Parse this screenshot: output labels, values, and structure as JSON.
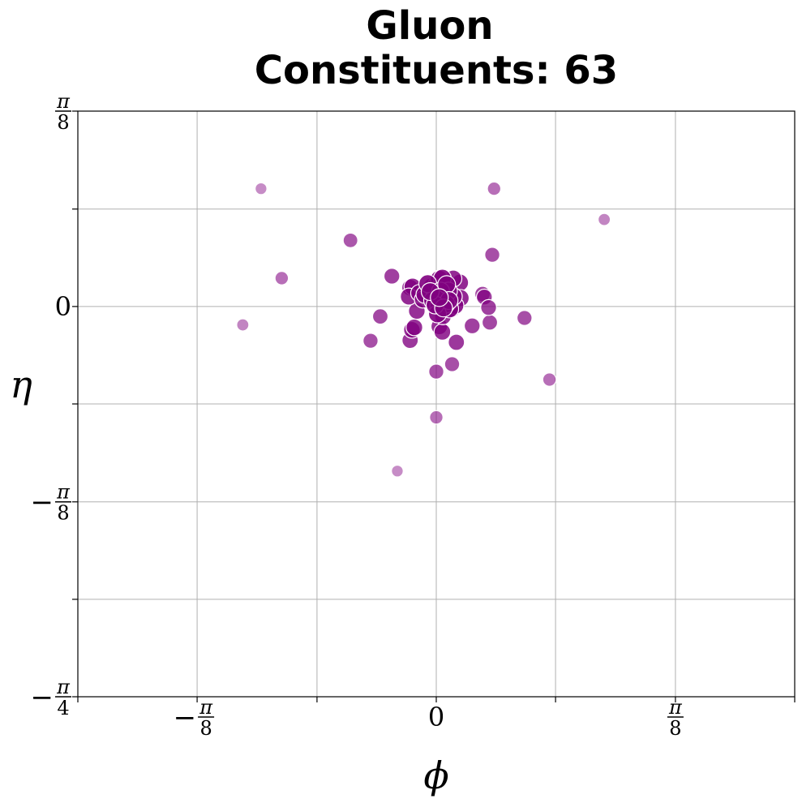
{
  "chart_data": {
    "type": "scatter",
    "title": "Gluon",
    "subtitle": "Constituents: 63",
    "xlabel": "ϕ",
    "ylabel": "η",
    "xlim": [
      -0.589,
      0.589
    ],
    "ylim": [
      -0.785,
      0.393
    ],
    "grid": true,
    "x_ticks": [
      {
        "value": -0.393,
        "label": "−π/8",
        "num": "π",
        "den": "8",
        "neg": true
      },
      {
        "value": 0,
        "label": "0"
      },
      {
        "value": 0.393,
        "label": "π/8",
        "num": "π",
        "den": "8",
        "neg": false
      }
    ],
    "y_ticks": [
      {
        "value": 0.393,
        "label": "π/8",
        "num": "π",
        "den": "8",
        "neg": false
      },
      {
        "value": 0,
        "label": "0"
      },
      {
        "value": -0.393,
        "label": "−π/8",
        "num": "π",
        "den": "8",
        "neg": true
      },
      {
        "value": -0.785,
        "label": "−π/4",
        "num": "π",
        "den": "4",
        "neg": true
      }
    ],
    "color": "#800080",
    "points": [
      {
        "x": -0.288,
        "y": 0.237,
        "s": 0.25
      },
      {
        "x": 0.095,
        "y": 0.237,
        "s": 0.45
      },
      {
        "x": 0.276,
        "y": 0.175,
        "s": 0.3
      },
      {
        "x": -0.141,
        "y": 0.133,
        "s": 0.6
      },
      {
        "x": 0.092,
        "y": 0.104,
        "s": 0.65
      },
      {
        "x": -0.254,
        "y": 0.057,
        "s": 0.45
      },
      {
        "x": -0.318,
        "y": -0.037,
        "s": 0.3
      },
      {
        "x": -0.073,
        "y": 0.061,
        "s": 0.75
      },
      {
        "x": -0.039,
        "y": 0.04,
        "s": 0.9
      },
      {
        "x": -0.045,
        "y": 0.02,
        "s": 0.9
      },
      {
        "x": -0.028,
        "y": 0.027,
        "s": 0.9
      },
      {
        "x": -0.022,
        "y": 0.014,
        "s": 0.9
      },
      {
        "x": -0.007,
        "y": 0.04,
        "s": 1.0
      },
      {
        "x": 0.001,
        "y": 0.044,
        "s": 1.0
      },
      {
        "x": 0.005,
        "y": 0.055,
        "s": 1.0
      },
      {
        "x": 0.01,
        "y": 0.057,
        "s": 1.0
      },
      {
        "x": 0.0,
        "y": 0.02,
        "s": 1.0
      },
      {
        "x": -0.006,
        "y": 0.012,
        "s": 1.0
      },
      {
        "x": 0.008,
        "y": 0.008,
        "s": 1.0
      },
      {
        "x": 0.004,
        "y": 0.001,
        "s": 1.0
      },
      {
        "x": 0.014,
        "y": 0.014,
        "s": 1.0
      },
      {
        "x": 0.011,
        "y": 0.022,
        "s": 1.0
      },
      {
        "x": 0.028,
        "y": 0.02,
        "s": 1.0
      },
      {
        "x": 0.02,
        "y": 0.031,
        "s": 1.0
      },
      {
        "x": 0.022,
        "y": -0.005,
        "s": 1.0
      },
      {
        "x": 0.039,
        "y": 0.048,
        "s": 0.9
      },
      {
        "x": 0.04,
        "y": 0.017,
        "s": 0.9
      },
      {
        "x": 0.028,
        "y": 0.056,
        "s": 0.9
      },
      {
        "x": -0.043,
        "y": 0.038,
        "s": 0.85
      },
      {
        "x": -0.032,
        "y": -0.009,
        "s": 0.85
      },
      {
        "x": -0.04,
        "y": -0.047,
        "s": 0.85
      },
      {
        "x": -0.036,
        "y": -0.042,
        "s": 0.85
      },
      {
        "x": -0.043,
        "y": -0.068,
        "s": 0.8
      },
      {
        "x": 0.005,
        "y": -0.04,
        "s": 0.85
      },
      {
        "x": 0.01,
        "y": -0.051,
        "s": 0.85
      },
      {
        "x": 0.011,
        "y": -0.02,
        "s": 0.85
      },
      {
        "x": 0.026,
        "y": -0.005,
        "s": 0.85
      },
      {
        "x": 0.033,
        "y": -0.072,
        "s": 0.8
      },
      {
        "x": 0.059,
        "y": -0.039,
        "s": 0.75
      },
      {
        "x": 0.076,
        "y": 0.025,
        "s": 0.7
      },
      {
        "x": 0.079,
        "y": 0.019,
        "s": 0.75
      },
      {
        "x": 0.086,
        "y": -0.002,
        "s": 0.75
      },
      {
        "x": 0.088,
        "y": -0.032,
        "s": 0.7
      },
      {
        "x": 0.145,
        "y": -0.023,
        "s": 0.65
      },
      {
        "x": -0.092,
        "y": -0.02,
        "s": 0.7
      },
      {
        "x": -0.108,
        "y": -0.069,
        "s": 0.65
      },
      {
        "x": -0.0,
        "y": -0.131,
        "s": 0.65
      },
      {
        "x": 0.026,
        "y": -0.116,
        "s": 0.65
      },
      {
        "x": 0.186,
        "y": -0.147,
        "s": 0.45
      },
      {
        "x": 0.0,
        "y": -0.223,
        "s": 0.45
      },
      {
        "x": -0.064,
        "y": -0.331,
        "s": 0.25
      },
      {
        "x": 0.016,
        "y": 0.005,
        "s": 1.0
      },
      {
        "x": -0.014,
        "y": 0.046,
        "s": 1.0
      },
      {
        "x": 0.007,
        "y": 0.031,
        "s": 1.0
      },
      {
        "x": 0.017,
        "y": 0.044,
        "s": 1.0
      },
      {
        "x": 0.002,
        "y": -0.015,
        "s": 1.0
      },
      {
        "x": 0.021,
        "y": 0.012,
        "s": 1.0
      },
      {
        "x": -0.002,
        "y": 0.003,
        "s": 1.0
      },
      {
        "x": 0.012,
        "y": -0.003,
        "s": 1.0
      },
      {
        "x": -0.019,
        "y": 0.024,
        "s": 0.95
      },
      {
        "x": 0.031,
        "y": 0.002,
        "s": 0.95
      },
      {
        "x": -0.01,
        "y": 0.03,
        "s": 1.0
      },
      {
        "x": 0.005,
        "y": 0.018,
        "s": 1.0
      }
    ]
  }
}
